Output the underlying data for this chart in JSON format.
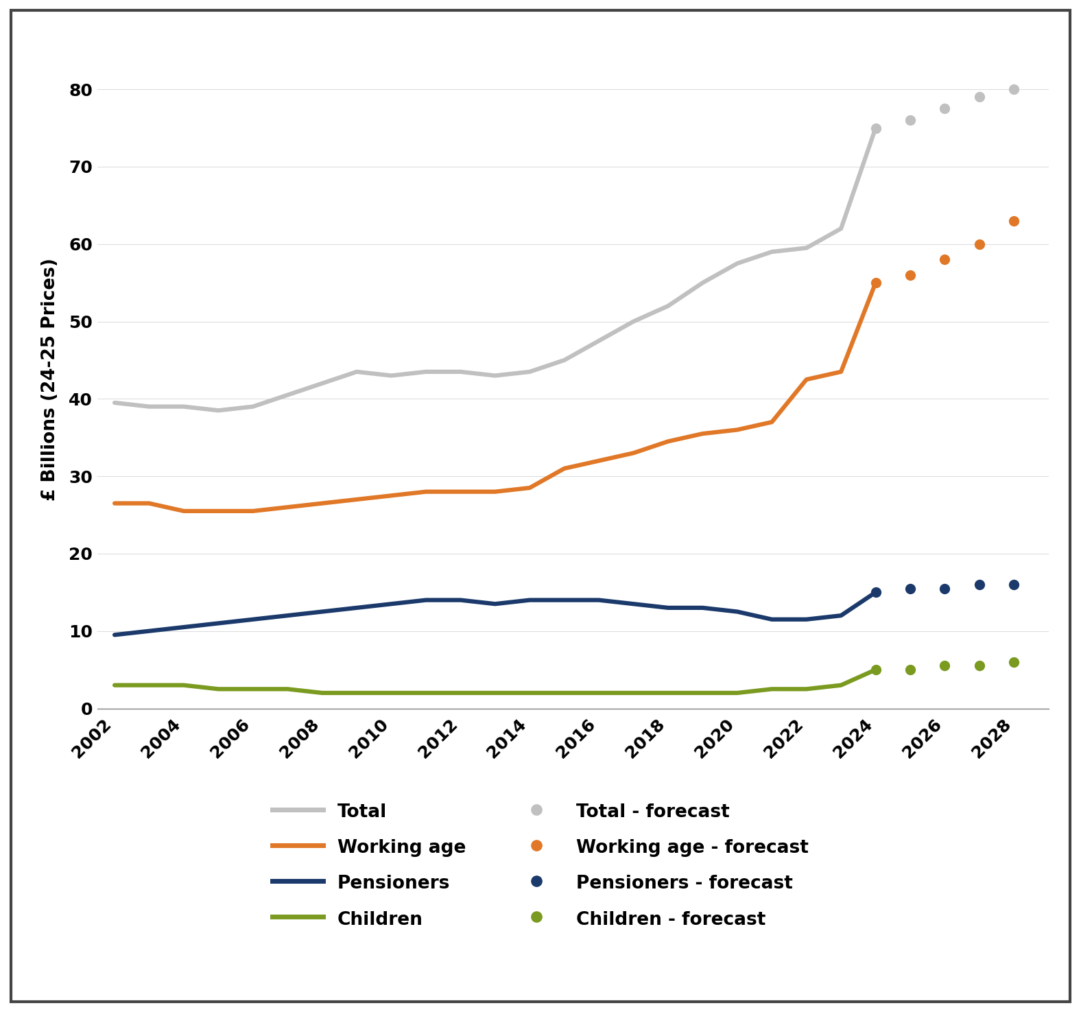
{
  "actual_years": [
    2002,
    2003,
    2004,
    2005,
    2006,
    2007,
    2008,
    2009,
    2010,
    2011,
    2012,
    2013,
    2014,
    2015,
    2016,
    2017,
    2018,
    2019,
    2020,
    2021,
    2022,
    2023,
    2024
  ],
  "forecast_years": [
    2024,
    2025,
    2026,
    2027,
    2028
  ],
  "total_actual": [
    39.5,
    39.0,
    39.0,
    38.5,
    39.0,
    40.5,
    42.0,
    43.5,
    43.0,
    43.5,
    43.5,
    43.0,
    43.5,
    45.0,
    47.5,
    50.0,
    52.0,
    55.0,
    57.5,
    59.0,
    59.5,
    62.0,
    75.0
  ],
  "total_forecast": [
    75.0,
    76.0,
    77.5,
    79.0,
    80.0
  ],
  "working_age_actual": [
    26.5,
    26.5,
    25.5,
    25.5,
    25.5,
    26.0,
    26.5,
    27.0,
    27.5,
    28.0,
    28.0,
    28.0,
    28.5,
    31.0,
    32.0,
    33.0,
    34.5,
    35.5,
    36.0,
    37.0,
    42.5,
    43.5,
    55.0
  ],
  "working_age_forecast": [
    55.0,
    56.0,
    58.0,
    60.0,
    63.0
  ],
  "pensioners_actual": [
    9.5,
    10.0,
    10.5,
    11.0,
    11.5,
    12.0,
    12.5,
    13.0,
    13.5,
    14.0,
    14.0,
    13.5,
    14.0,
    14.0,
    14.0,
    13.5,
    13.0,
    13.0,
    12.5,
    11.5,
    11.5,
    12.0,
    15.0
  ],
  "pensioners_forecast": [
    15.0,
    15.5,
    15.5,
    16.0,
    16.0
  ],
  "children_actual": [
    3.0,
    3.0,
    3.0,
    2.5,
    2.5,
    2.5,
    2.0,
    2.0,
    2.0,
    2.0,
    2.0,
    2.0,
    2.0,
    2.0,
    2.0,
    2.0,
    2.0,
    2.0,
    2.0,
    2.5,
    2.5,
    3.0,
    5.0
  ],
  "children_forecast": [
    5.0,
    5.0,
    5.5,
    5.5,
    6.0
  ],
  "total_color": "#c0c0c0",
  "working_age_color": "#e07828",
  "pensioners_color": "#1b3a6b",
  "children_color": "#7a9a20",
  "ylim": [
    0,
    85
  ],
  "yticks": [
    0,
    10,
    20,
    30,
    40,
    50,
    60,
    70,
    80
  ],
  "xticks": [
    2002,
    2004,
    2006,
    2008,
    2010,
    2012,
    2014,
    2016,
    2018,
    2020,
    2022,
    2024,
    2026,
    2028
  ],
  "xlim": [
    2001.5,
    2029.0
  ],
  "ylabel": "£ Billions (24-25 Prices)",
  "background_color": "#ffffff",
  "linewidth": 4.5,
  "dotsize": 11,
  "border_color": "#444444"
}
